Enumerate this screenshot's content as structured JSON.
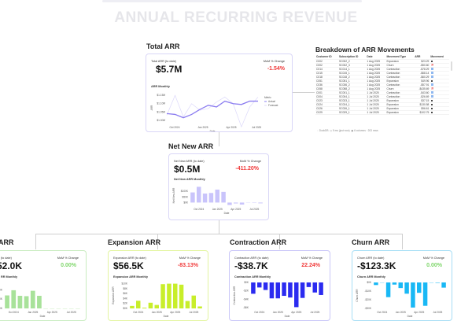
{
  "page_title": "ANNUAL RECURRING REVENUE",
  "total": {
    "section": "Total ARR",
    "label": "Total ARR (to date)",
    "value": "$5.7M",
    "mom_label": "MoM % Change",
    "mom": "-1.54%",
    "chart_title": "ARR Monthly",
    "ylabel": "ARR",
    "xlabel": "Date",
    "legend": {
      "title": "Metric",
      "items": [
        "Actual",
        "Forecast"
      ]
    },
    "chart_data": {
      "type": "line",
      "yticks": [
        "$1.00M",
        "$1.05M",
        "$1.10M",
        "$1.15M"
      ],
      "ylim": [
        0.98,
        1.17
      ],
      "xticks": [
        "Oct 2024",
        "Jan 2025",
        "Apr 2025",
        "Jul 2025"
      ],
      "series": [
        {
          "name": "Actual",
          "color": "#8b7cf0",
          "values": [
            1.04,
            1.035,
            1.015,
            1.035,
            1.065,
            1.09,
            1.08,
            1.115,
            1.1,
            1.095,
            1.115,
            1.115
          ]
        },
        {
          "name": "Forecast",
          "color": "#dcd8fa",
          "values": [
            1.03,
            1.15,
            1.02,
            1.1,
            1.06,
            1.07,
            1.11,
            1.14,
            1.1,
            0.96,
            1.08,
            1.14
          ]
        }
      ]
    }
  },
  "breakdown": {
    "title": "Breakdown of ARR Movements",
    "columns": [
      "Customer ID",
      "Subscription ID",
      "Date",
      "Movement Type",
      "ARR",
      "Movement"
    ],
    "rows": [
      [
        "C002",
        "SC002_2",
        "1 Aug 2025",
        "Expansion",
        "$23.29",
        "up"
      ],
      [
        "C002",
        "SC002_3",
        "1 Aug 2025",
        "Churn",
        "-$50.60",
        "x"
      ],
      [
        "C014",
        "SC014_1",
        "1 Aug 2025",
        "Contraction",
        "-$78.29",
        "down"
      ],
      [
        "C015",
        "SC015_1",
        "1 Aug 2025",
        "Contraction",
        "-$68.14",
        "down"
      ],
      [
        "C018",
        "SC018_2",
        "1 Aug 2025",
        "Contraction",
        "-$60.29",
        "down"
      ],
      [
        "C051",
        "SC051_1",
        "1 Aug 2025",
        "Expansion",
        "$49.96",
        "up"
      ],
      [
        "C036",
        "SC036_2",
        "1 Aug 2025",
        "Contraction",
        "-$57.91",
        "down"
      ],
      [
        "C058",
        "SC058_2",
        "1 Aug 2025",
        "Churn",
        "-$435.69",
        "x"
      ],
      [
        "C001",
        "SC001_1",
        "1 Jul 2025",
        "Contraction",
        "-$43.60",
        "down"
      ],
      [
        "C004",
        "SC004_1",
        "1 Jul 2025",
        "Contraction",
        "-$26.69",
        "down"
      ],
      [
        "C023",
        "SC023_1",
        "1 Jul 2025",
        "Expansion",
        "$37.15",
        "up"
      ],
      [
        "C024",
        "SC024_1",
        "1 Jul 2025",
        "Expansion",
        "$130.58",
        "up"
      ],
      [
        "C026",
        "SC026_1",
        "1 Jul 2025",
        "Expansion",
        "$96.61",
        "up"
      ],
      [
        "C029",
        "SC029_1",
        "1 Jul 2025",
        "Expansion",
        "$102.75",
        "up"
      ]
    ],
    "footer": [
      "DuckDB",
      "5 ms (just now)",
      "6 columns · 203 rows"
    ]
  },
  "net_new": {
    "section": "Net New ARR",
    "label": "Net New ARR (to date)",
    "value": "$0.5M",
    "mom_label": "MoM % Change",
    "mom": "-411.20%",
    "chart_title": "Net New ARR Monthly",
    "ylabel": "Net New ARR",
    "xlabel": "Date",
    "chart_data": {
      "type": "bar",
      "color": "#c9c4fb",
      "yticks": [
        "$0K",
        "$50K",
        "$100K"
      ],
      "tickvals": [
        0,
        50,
        100
      ],
      "ylim": [
        -25,
        150
      ],
      "xticks": [
        "Oct 2024",
        "Jan 2025",
        "Apr 2025",
        "Jul 2025"
      ],
      "values": [
        90,
        140,
        80,
        85,
        115,
        95,
        -22,
        -8,
        -18,
        -2,
        -3,
        -7
      ]
    }
  },
  "new": {
    "section": "ARR",
    "label": "R (to date)",
    "value": "52.0K",
    "mom_label": "MoM % Change",
    "mom": "0.00%",
    "chart_title": "RR Monthly",
    "xlabel": "Date",
    "chart_data": {
      "type": "bar",
      "color": "#a8e29a",
      "yticks": [
        "$0K",
        "50K",
        "00K"
      ],
      "tickvals": [
        0,
        50,
        100
      ],
      "ylim": [
        0,
        140
      ],
      "xticks": [
        "Oct 2024",
        "Jan 2025",
        "Apr 2025",
        "Jul 2025"
      ],
      "values": [
        70,
        98,
        68,
        66,
        95,
        68,
        0,
        0,
        0,
        0,
        0,
        0
      ]
    }
  },
  "expansion": {
    "section": "Expansion ARR",
    "label": "Expansion ARR (to date)",
    "value": "$56.5K",
    "mom_label": "MoM % Change",
    "mom": "-83.13%",
    "chart_title": "Expansion ARR Monthly",
    "ylabel": "Expansion ARR",
    "xlabel": "Date",
    "chart_data": {
      "type": "bar",
      "color": "#c8ee2a",
      "yticks": [
        "$0K",
        "$2K",
        "$4K",
        "$6K",
        "$8K",
        "$10K"
      ],
      "tickvals": [
        0,
        2,
        4,
        6,
        8,
        10
      ],
      "ylim": [
        0,
        10.5
      ],
      "xticks": [
        "Oct 2024",
        "Jan 2025",
        "Apr 2025",
        "Jul 2025"
      ],
      "values": [
        1,
        3.1,
        0.3,
        2.3,
        1.4,
        9.8,
        10,
        10,
        9.6,
        3,
        5.2,
        0.8
      ]
    }
  },
  "contraction": {
    "section": "Contraction ARR",
    "label": "Contraction ARR (to date)",
    "value": "-$38.7K",
    "mom_label": "MoM % Change",
    "mom": "22.24%",
    "chart_title": "Contraction ARR Monthly",
    "ylabel": "Contraction ARR",
    "xlabel": "Date",
    "chart_data": {
      "type": "bar",
      "color": "#2b2bf0",
      "yticks": [
        "$0K",
        "-$2K",
        "-$4K",
        "-$6K"
      ],
      "tickvals": [
        0,
        -2,
        -4,
        -6
      ],
      "ylim": [
        -6.2,
        0
      ],
      "xticks": [
        "Oct 2024",
        "Jan 2025",
        "Apr 2025",
        "Jul 2025"
      ],
      "values": [
        -2.7,
        -1.2,
        -1.8,
        -3.8,
        -3.8,
        -3.2,
        -3.6,
        -5.9,
        -3.7,
        -1.1,
        -2.4,
        -3
      ]
    }
  },
  "churn": {
    "section": "Churn ARR",
    "label": "Churn ARR (to date)",
    "value": "-$123.3K",
    "mom_label": "MoM % Change",
    "mom": "0.00%",
    "chart_title": "Churn ARR Monthly",
    "ylabel": "Churn ARR",
    "xlabel": "Date",
    "chart_data": {
      "type": "bar",
      "color": "#19b8f5",
      "yticks": [
        "$0K",
        "-$10K",
        "-$20K",
        "-$30K"
      ],
      "tickvals": [
        0,
        -10,
        -20,
        -30
      ],
      "ylim": [
        -30,
        0
      ],
      "xticks": [
        "Oct 2024",
        "Jan 2025",
        "Apr 2025",
        "Jul 2025"
      ],
      "values": [
        -3,
        0,
        -17,
        -2.5,
        -6.5,
        -13,
        -29,
        -12,
        -27,
        -0.3,
        -0.5,
        -6
      ]
    }
  },
  "colors": {
    "negative": "#f03a3a",
    "positive": "#7ed66a"
  }
}
